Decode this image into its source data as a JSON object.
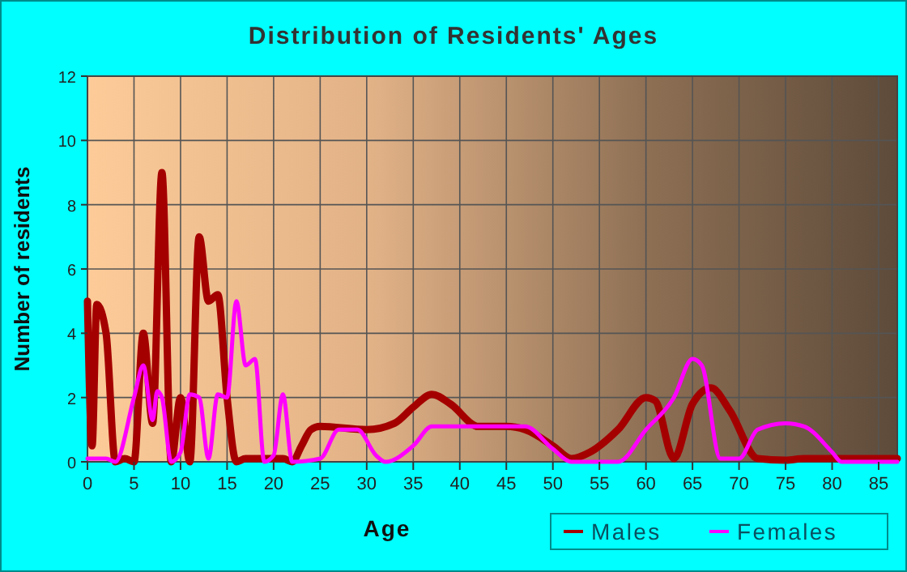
{
  "chart_data": {
    "type": "line",
    "title": "Distribution of Residents' Ages",
    "xlabel": "Age",
    "ylabel": "Number of residents",
    "xlim": [
      0,
      87
    ],
    "ylim": [
      0,
      12
    ],
    "xticks": [
      0,
      5,
      10,
      15,
      20,
      25,
      30,
      35,
      40,
      45,
      50,
      55,
      60,
      65,
      70,
      75,
      80,
      85
    ],
    "yticks": [
      0,
      2,
      4,
      6,
      8,
      10,
      12
    ],
    "grid": true,
    "legend": "bottom right",
    "series": [
      {
        "name": "Males",
        "color": "#a50000",
        "x": [
          0,
          0.5,
          1,
          2,
          3,
          4,
          5,
          6,
          7,
          8,
          9,
          10,
          11,
          12,
          13,
          14,
          15,
          16,
          17,
          21,
          22,
          23,
          24,
          25,
          30,
          33,
          35,
          37,
          39,
          42,
          45,
          47,
          50,
          52,
          54,
          57,
          60,
          61,
          63,
          65,
          67,
          69,
          72,
          75,
          77,
          87
        ],
        "values": [
          5,
          0.5,
          4.9,
          4,
          0,
          0.1,
          0,
          4,
          1.2,
          9,
          0,
          2,
          0,
          7,
          5,
          5.2,
          2,
          0,
          0.1,
          0.1,
          0,
          0.5,
          1,
          1.1,
          1,
          1.2,
          1.7,
          2.1,
          1.8,
          1.1,
          1.1,
          1,
          0.5,
          0.1,
          0.3,
          1,
          2,
          1.9,
          0.1,
          1.8,
          2.3,
          1.6,
          0.1,
          0.05,
          0.1,
          0.1
        ]
      },
      {
        "name": "Females",
        "color": "#ff00ff",
        "x": [
          0,
          2,
          3,
          5,
          6,
          7,
          7.5,
          8,
          9,
          10,
          11,
          12,
          13,
          14,
          15,
          16,
          17,
          18,
          19,
          20,
          21,
          22,
          25,
          27,
          29,
          31,
          32,
          35,
          37,
          40,
          43,
          47,
          50,
          52,
          57,
          60,
          63,
          65,
          66,
          68,
          70,
          72,
          75,
          77,
          80,
          81,
          87
        ],
        "values": [
          0.1,
          0.1,
          0,
          2,
          3,
          1.3,
          2.2,
          2,
          0,
          0.3,
          2.1,
          2,
          0.1,
          2.1,
          2,
          5,
          3,
          3.2,
          0,
          0.2,
          2.1,
          0,
          0.1,
          1,
          1,
          0.2,
          0,
          0.5,
          1.1,
          1.1,
          1.1,
          1.1,
          0.4,
          0,
          0,
          1,
          2,
          3.2,
          3,
          0.1,
          0.1,
          1,
          1.2,
          1.1,
          0.3,
          0,
          0
        ]
      }
    ]
  }
}
